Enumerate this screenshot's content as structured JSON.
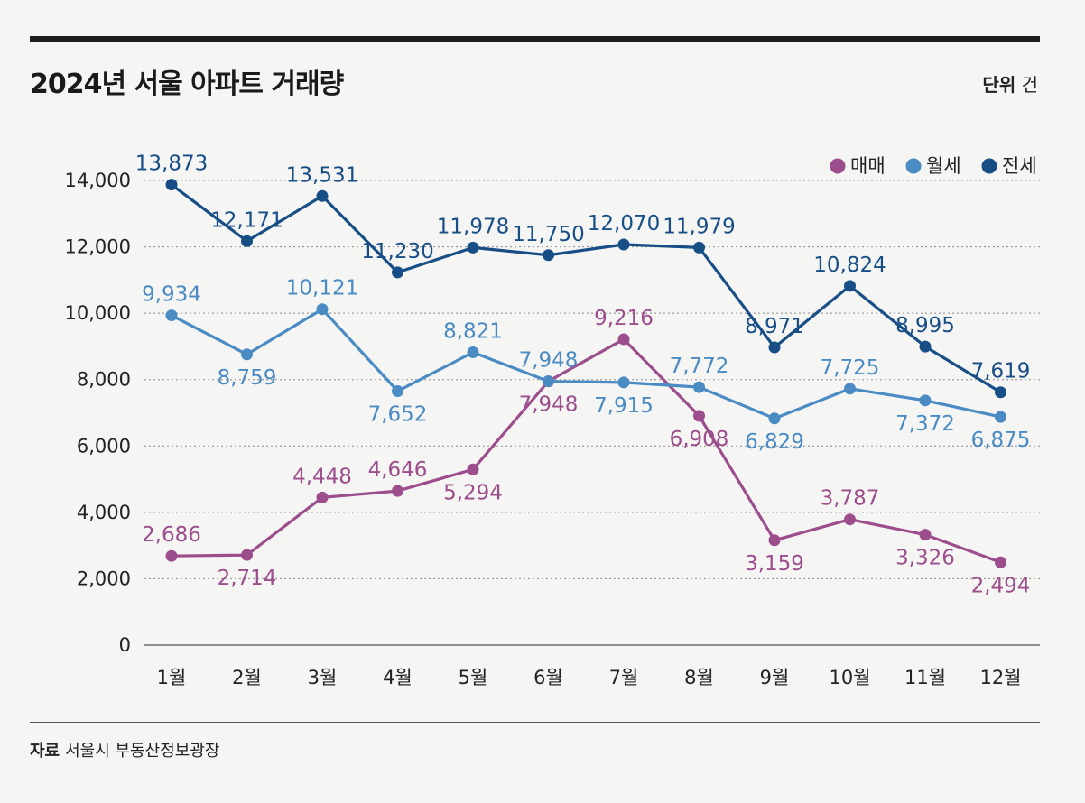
{
  "header": {
    "title": "2024년 서울 아파트 거래량",
    "unit_label": "단위",
    "unit_value": "건"
  },
  "footer": {
    "source_label": "자료",
    "source_value": "서울시 부동산정보광장"
  },
  "chart_data": {
    "type": "line",
    "title": "2024년 서울 아파트 거래량",
    "xlabel": "",
    "ylabel": "",
    "ylim": [
      0,
      14000
    ],
    "yticks": [
      0,
      2000,
      4000,
      6000,
      8000,
      10000,
      12000,
      14000
    ],
    "ytick_labels": [
      "0",
      "2,000",
      "4,000",
      "6,000",
      "8,000",
      "10,000",
      "12,000",
      "14,000"
    ],
    "categories": [
      "1월",
      "2월",
      "3월",
      "4월",
      "5월",
      "6월",
      "7월",
      "8월",
      "9월",
      "10월",
      "11월",
      "12월"
    ],
    "grid": true,
    "legend_position": "top-right",
    "series": [
      {
        "name": "매매",
        "color": "#9c4d8c",
        "values": [
          2686,
          2714,
          4448,
          4646,
          5294,
          7948,
          9216,
          6908,
          3159,
          3787,
          3326,
          2494
        ],
        "labels": [
          "2,686",
          "2,714",
          "4,448",
          "4,646",
          "5,294",
          "7,948",
          "9,216",
          "6,908",
          "3,159",
          "3,787",
          "3,326",
          "2,494"
        ]
      },
      {
        "name": "월세",
        "color": "#4a8bc4",
        "values": [
          9934,
          8759,
          10121,
          7652,
          8821,
          7948,
          7915,
          7772,
          6829,
          7725,
          7372,
          6875
        ],
        "labels": [
          "9,934",
          "8,759",
          "10,121",
          "7,652",
          "8,821",
          "7,948",
          "7,915",
          "7,772",
          "6,829",
          "7,725",
          "7,372",
          "6,875"
        ]
      },
      {
        "name": "전세",
        "color": "#174e86",
        "values": [
          13873,
          12171,
          13531,
          11230,
          11978,
          11750,
          12070,
          11979,
          8971,
          10824,
          8995,
          7619
        ],
        "labels": [
          "13,873",
          "12,171",
          "13,531",
          "11,230",
          "11,978",
          "11,750",
          "12,070",
          "11,979",
          "8,971",
          "10,824",
          "8,995",
          "7,619"
        ]
      }
    ]
  }
}
